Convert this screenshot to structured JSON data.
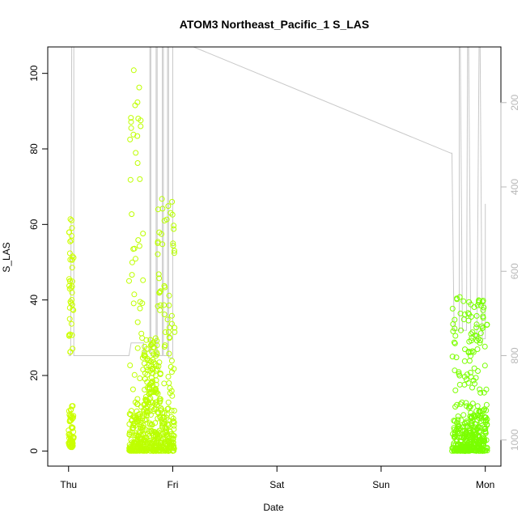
{
  "chart_data": {
    "type": "scatter",
    "title": "ATOM3 Northeast_Pacific_1 S_LAS",
    "xlabel": "Date",
    "ylabel": "S_LAS",
    "x_ticks": [
      "Thu",
      "Fri",
      "Sat",
      "Sun",
      "Mon"
    ],
    "x_range_days": [
      -0.2,
      4.15
    ],
    "ylim": [
      -4,
      107
    ],
    "y_ticks": [
      0,
      20,
      40,
      60,
      80,
      100
    ],
    "right_axis": {
      "ticks": [
        200,
        400,
        600,
        800,
        1000
      ],
      "range": [
        68,
        1062
      ],
      "reversed": true,
      "color": "#b8b8b8"
    },
    "point_color_start": "#ccff00",
    "point_color_end": "#77ff00",
    "line_color": "#c8c8c8",
    "point_clusters": [
      {
        "x0": 0.0,
        "x1": 0.05,
        "y_dense": [
          1,
          12
        ],
        "y_sparse": [
          26,
          62
        ],
        "n_dense": 60,
        "n_sparse": 40
      },
      {
        "x0": 0.58,
        "x1": 0.72,
        "y_dense": [
          0,
          10
        ],
        "y_sparse": [
          10,
          103
        ],
        "n_dense": 120,
        "n_sparse": 50
      },
      {
        "x0": 0.72,
        "x1": 0.85,
        "y_dense": [
          0,
          30
        ],
        "y_sparse": [
          10,
          30
        ],
        "n_dense": 160,
        "n_sparse": 40
      },
      {
        "x0": 0.85,
        "x1": 1.02,
        "y_dense": [
          0,
          12
        ],
        "y_sparse": [
          12,
          67
        ],
        "n_dense": 140,
        "n_sparse": 70
      },
      {
        "x0": 3.68,
        "x1": 3.85,
        "y_dense": [
          0,
          8
        ],
        "y_sparse": [
          8,
          42
        ],
        "n_dense": 130,
        "n_sparse": 50
      },
      {
        "x0": 3.85,
        "x1": 4.02,
        "y_dense": [
          0,
          12
        ],
        "y_sparse": [
          10,
          40
        ],
        "n_dense": 160,
        "n_sparse": 60
      }
    ],
    "depth_line": [
      [
        0.0,
        800
      ],
      [
        0.02,
        800
      ],
      [
        0.03,
        68
      ],
      [
        0.05,
        68
      ],
      [
        0.05,
        800
      ],
      [
        0.58,
        800
      ],
      [
        0.6,
        770
      ],
      [
        0.72,
        770
      ],
      [
        0.72,
        790
      ],
      [
        0.78,
        790
      ],
      [
        0.78,
        68
      ],
      [
        0.79,
        68
      ],
      [
        0.79,
        800
      ],
      [
        0.84,
        800
      ],
      [
        0.84,
        68
      ],
      [
        0.85,
        68
      ],
      [
        0.85,
        800
      ],
      [
        0.9,
        800
      ],
      [
        0.9,
        68
      ],
      [
        0.91,
        68
      ],
      [
        0.91,
        800
      ],
      [
        0.95,
        800
      ],
      [
        0.95,
        68
      ],
      [
        0.96,
        68
      ],
      [
        0.96,
        805
      ],
      [
        1.0,
        805
      ],
      [
        1.0,
        68
      ],
      [
        1.2,
        68
      ],
      [
        3.67,
        320
      ],
      [
        3.68,
        320
      ],
      [
        3.7,
        740
      ],
      [
        3.75,
        740
      ],
      [
        3.75,
        68
      ],
      [
        3.76,
        68
      ],
      [
        3.78,
        740
      ],
      [
        3.82,
        740
      ],
      [
        3.83,
        68
      ],
      [
        3.84,
        68
      ],
      [
        3.86,
        740
      ],
      [
        3.92,
        760
      ],
      [
        3.94,
        68
      ],
      [
        3.95,
        68
      ],
      [
        3.97,
        760
      ],
      [
        4.0,
        760
      ],
      [
        4.0,
        440
      ]
    ]
  }
}
